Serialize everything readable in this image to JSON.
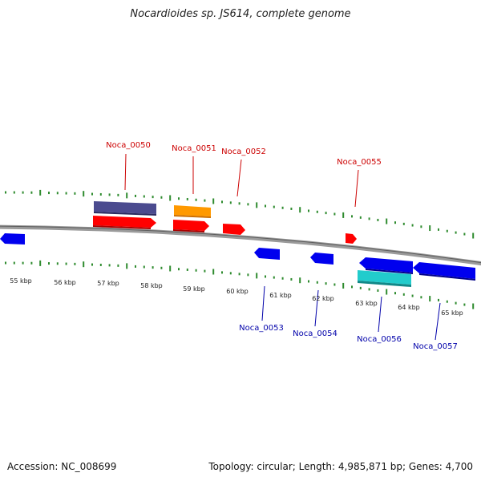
{
  "header": {
    "title": "Nocardioides sp. JS614, complete genome"
  },
  "footer": {
    "accession": "Accession: NC_008699",
    "summary": "Topology: circular; Length: 4,985,871 bp; Genes: 4,700"
  },
  "colors": {
    "backbone": "#808080",
    "tick": "#2e8b2e",
    "forward_label": "#cc0000",
    "reverse_label": "#0000aa",
    "purple": "#4b4b8f",
    "orange": "#ff9900",
    "red": "#ff0000",
    "blue": "#0000ee",
    "cyan": "#22cccc"
  },
  "scale_labels": [
    "55 kbp",
    "56 kbp",
    "57 kbp",
    "58 kbp",
    "59 kbp",
    "60 kbp",
    "61 kbp",
    "62 kbp",
    "63 kbp",
    "64 kbp",
    "65 kbp"
  ],
  "forward_labels": [
    "Noca_0050",
    "Noca_0051",
    "Noca_0052",
    "Noca_0055"
  ],
  "reverse_labels": [
    "Noca_0053",
    "Noca_0054",
    "Noca_0056",
    "Noca_0057"
  ]
}
